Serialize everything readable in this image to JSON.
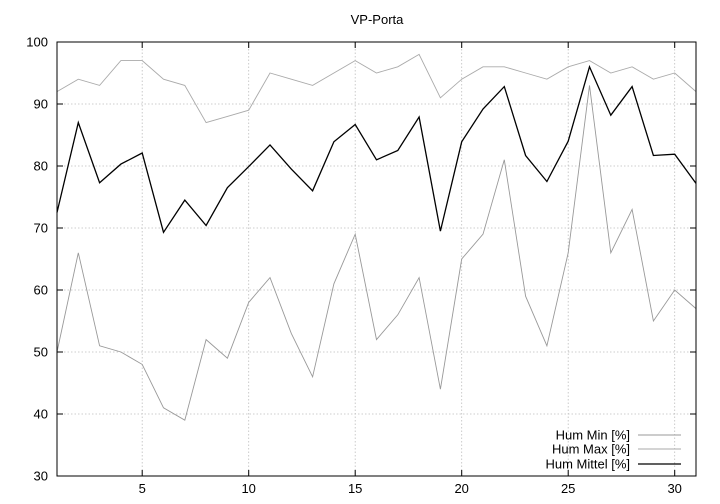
{
  "chart_data": {
    "type": "line",
    "title": "VP-Porta",
    "xlabel": "",
    "ylabel": "",
    "xlim": [
      1,
      31
    ],
    "ylim": [
      30,
      100
    ],
    "x_ticks": [
      5,
      10,
      15,
      20,
      25,
      30
    ],
    "y_ticks": [
      30,
      40,
      50,
      60,
      70,
      80,
      90,
      100
    ],
    "grid": true,
    "legend_position": "bottom-right",
    "x": [
      1,
      2,
      3,
      4,
      5,
      6,
      7,
      8,
      9,
      10,
      11,
      12,
      13,
      14,
      15,
      16,
      17,
      18,
      19,
      20,
      21,
      22,
      23,
      24,
      25,
      26,
      27,
      28,
      29,
      30,
      31
    ],
    "series": [
      {
        "name": "Hum Min [%]",
        "color": "#999999",
        "values": [
          50,
          66,
          51,
          50,
          48,
          41,
          39,
          52,
          49,
          58,
          62,
          53,
          46,
          61,
          69,
          52,
          56,
          62,
          44,
          65,
          69,
          81,
          59,
          51,
          66,
          93,
          66,
          73,
          55,
          60,
          57
        ]
      },
      {
        "name": "Hum Max [%]",
        "color": "#aaaaaa",
        "values": [
          92,
          94,
          93,
          97,
          97,
          94,
          93,
          87,
          88,
          89,
          95,
          94,
          93,
          95,
          97,
          95,
          96,
          98,
          91,
          94,
          96,
          96,
          95,
          94,
          96,
          97,
          95,
          96,
          94,
          95,
          92
        ]
      },
      {
        "name": "Hum Mittel [%]",
        "color": "#000000",
        "values": [
          72.5,
          87,
          77.3,
          80.3,
          82.1,
          69.3,
          74.5,
          70.4,
          76.5,
          79.9,
          83.4,
          79.5,
          76,
          83.9,
          86.7,
          81,
          82.5,
          87.9,
          69.5,
          83.9,
          89.2,
          92.8,
          81.7,
          77.5,
          84,
          96,
          88.2,
          92.8,
          81.7,
          81.9,
          77.2
        ]
      }
    ]
  }
}
